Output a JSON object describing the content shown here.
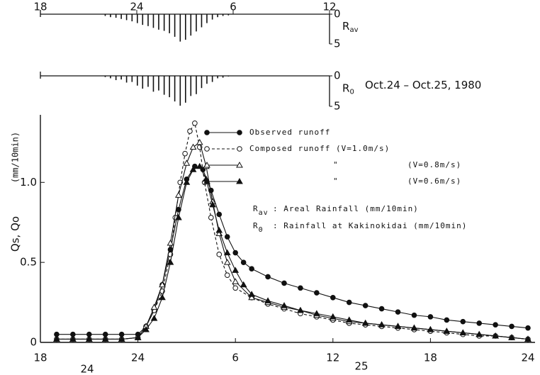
{
  "chart_data": [
    {
      "type": "hyetograph",
      "label_main": "R",
      "label_sub": "av",
      "xlim": [
        0,
        18
      ],
      "xticks": [
        {
          "value": 0,
          "label": "18"
        },
        {
          "value": 6,
          "label": "24"
        },
        {
          "value": 12,
          "label": "6"
        },
        {
          "value": 18,
          "label": "12"
        }
      ],
      "ylim": [
        0,
        5
      ],
      "yticks": [
        0,
        5
      ],
      "color": "#111",
      "x": [
        4,
        4.33,
        4.67,
        5,
        5.33,
        5.67,
        6,
        6.33,
        6.67,
        7,
        7.33,
        7.67,
        8,
        8.33,
        8.67,
        9,
        9.33,
        9.67,
        10,
        10.33,
        10.67,
        11,
        11.33,
        11.67
      ],
      "values": [
        0.3,
        0.5,
        0.6,
        0.8,
        1.0,
        1.2,
        1.5,
        1.8,
        2.0,
        2.3,
        2.6,
        2.8,
        3.2,
        3.8,
        4.6,
        4.3,
        3.6,
        2.9,
        2.2,
        1.5,
        0.9,
        0.5,
        0.3,
        0.2
      ]
    },
    {
      "type": "hyetograph",
      "label_main": "R",
      "label_sub": "0",
      "xlim": [
        0,
        18
      ],
      "ylim": [
        0,
        5
      ],
      "yticks": [
        0,
        5
      ],
      "color": "#111",
      "x": [
        4,
        4.33,
        4.67,
        5,
        5.33,
        5.67,
        6,
        6.33,
        6.67,
        7,
        7.33,
        7.67,
        8,
        8.33,
        8.67,
        9,
        9.33,
        9.67,
        10,
        10.33,
        10.67,
        11,
        11.33,
        11.67
      ],
      "values": [
        0.2,
        0.4,
        0.7,
        0.6,
        1.1,
        1.0,
        1.6,
        2.1,
        1.8,
        2.6,
        2.4,
        3.1,
        3.5,
        4.2,
        4.9,
        4.4,
        3.3,
        3.0,
        2.0,
        1.3,
        1.0,
        0.4,
        0.3,
        0.1
      ],
      "annotation": "Oct.24 – Oct.25, 1980"
    },
    {
      "type": "line",
      "y_label": "Qs, Qo",
      "y_unit": "(mm/10min)",
      "xlim": [
        0,
        30
      ],
      "xticks": [
        {
          "value": 0,
          "label": "18"
        },
        {
          "value": 6,
          "label": "24"
        },
        {
          "value": 12,
          "label": "6"
        },
        {
          "value": 18,
          "label": "12"
        },
        {
          "value": 24,
          "label": "18"
        },
        {
          "value": 30,
          "label": "24"
        }
      ],
      "day_labels": [
        "24",
        "25"
      ],
      "ylim": [
        0,
        1.4
      ],
      "yticks": [
        0,
        0.5,
        {
          "value": 1,
          "label": "1.0"
        }
      ],
      "series": [
        {
          "name": "Observed runoff",
          "marker": "filled-circle",
          "dash": false,
          "color": "#111",
          "x": [
            1,
            2,
            3,
            4,
            5,
            6,
            6.5,
            7,
            7.5,
            8,
            8.5,
            9,
            9.5,
            10,
            10.5,
            11,
            11.5,
            12,
            12.5,
            13,
            14,
            15,
            16,
            17,
            18,
            19,
            20,
            21,
            22,
            23,
            24,
            25,
            26,
            27,
            28,
            29,
            30
          ],
          "values": [
            0.05,
            0.05,
            0.05,
            0.05,
            0.05,
            0.05,
            0.1,
            0.2,
            0.36,
            0.58,
            0.83,
            1.02,
            1.1,
            1.08,
            0.95,
            0.8,
            0.66,
            0.56,
            0.5,
            0.46,
            0.41,
            0.37,
            0.34,
            0.31,
            0.28,
            0.25,
            0.23,
            0.21,
            0.19,
            0.17,
            0.16,
            0.14,
            0.13,
            0.12,
            0.11,
            0.1,
            0.09
          ]
        },
        {
          "name": "Composed runoff (V=1.0m/s)",
          "marker": "open-circle",
          "dash": true,
          "color": "#111",
          "x": [
            1,
            2,
            3,
            4,
            5,
            6,
            6.5,
            7,
            7.5,
            8,
            8.3,
            8.6,
            8.9,
            9.2,
            9.5,
            9.8,
            10.1,
            10.5,
            11,
            11.5,
            12,
            13,
            14,
            15,
            16,
            17,
            18,
            19,
            20,
            21,
            22,
            23,
            24,
            25,
            26,
            27,
            28,
            29,
            30
          ],
          "values": [
            0.02,
            0.02,
            0.02,
            0.02,
            0.02,
            0.03,
            0.1,
            0.2,
            0.32,
            0.55,
            0.78,
            1.0,
            1.18,
            1.32,
            1.37,
            1.22,
            1.0,
            0.78,
            0.55,
            0.42,
            0.34,
            0.28,
            0.24,
            0.21,
            0.18,
            0.16,
            0.14,
            0.12,
            0.11,
            0.1,
            0.09,
            0.08,
            0.07,
            0.06,
            0.05,
            0.04,
            0.04,
            0.03,
            0.02
          ]
        },
        {
          "name": "(V=0.8m/s)",
          "ditto": "\"",
          "marker": "open-triangle",
          "dash": false,
          "color": "#111",
          "x": [
            1,
            2,
            3,
            4,
            5,
            6,
            6.5,
            7,
            7.5,
            8,
            8.5,
            9,
            9.4,
            9.8,
            10.2,
            10.6,
            11,
            11.5,
            12,
            13,
            14,
            15,
            16,
            17,
            18,
            19,
            20,
            21,
            22,
            23,
            24,
            25,
            26,
            27,
            28,
            29,
            30
          ],
          "values": [
            0.02,
            0.02,
            0.02,
            0.02,
            0.02,
            0.03,
            0.1,
            0.22,
            0.36,
            0.62,
            0.92,
            1.12,
            1.22,
            1.25,
            1.1,
            0.88,
            0.68,
            0.5,
            0.38,
            0.28,
            0.25,
            0.22,
            0.2,
            0.17,
            0.15,
            0.13,
            0.12,
            0.11,
            0.1,
            0.09,
            0.08,
            0.07,
            0.06,
            0.05,
            0.04,
            0.03,
            0.02
          ]
        },
        {
          "name": "(V=0.6m/s)",
          "ditto": "\"",
          "marker": "filled-triangle",
          "dash": false,
          "color": "#111",
          "x": [
            1,
            2,
            3,
            4,
            5,
            6,
            6.5,
            7,
            7.5,
            8,
            8.5,
            9,
            9.4,
            9.8,
            10.2,
            10.6,
            11,
            11.5,
            12,
            12.5,
            13,
            14,
            15,
            16,
            17,
            18,
            19,
            20,
            21,
            22,
            23,
            24,
            25,
            26,
            27,
            28,
            29,
            30
          ],
          "values": [
            0.02,
            0.02,
            0.02,
            0.02,
            0.02,
            0.03,
            0.08,
            0.15,
            0.28,
            0.5,
            0.78,
            1.0,
            1.08,
            1.1,
            1.02,
            0.86,
            0.7,
            0.56,
            0.45,
            0.36,
            0.3,
            0.26,
            0.23,
            0.2,
            0.18,
            0.16,
            0.14,
            0.12,
            0.11,
            0.1,
            0.09,
            0.08,
            0.07,
            0.06,
            0.05,
            0.04,
            0.03,
            0.02
          ]
        }
      ],
      "notes": [
        {
          "main": "R",
          "sub": "av",
          "text": ": Areal Rainfall (mm/10min)"
        },
        {
          "main": "R",
          "sub": "0",
          "text": ": Rainfall at Kakinokidai (mm/10min)"
        }
      ]
    }
  ]
}
